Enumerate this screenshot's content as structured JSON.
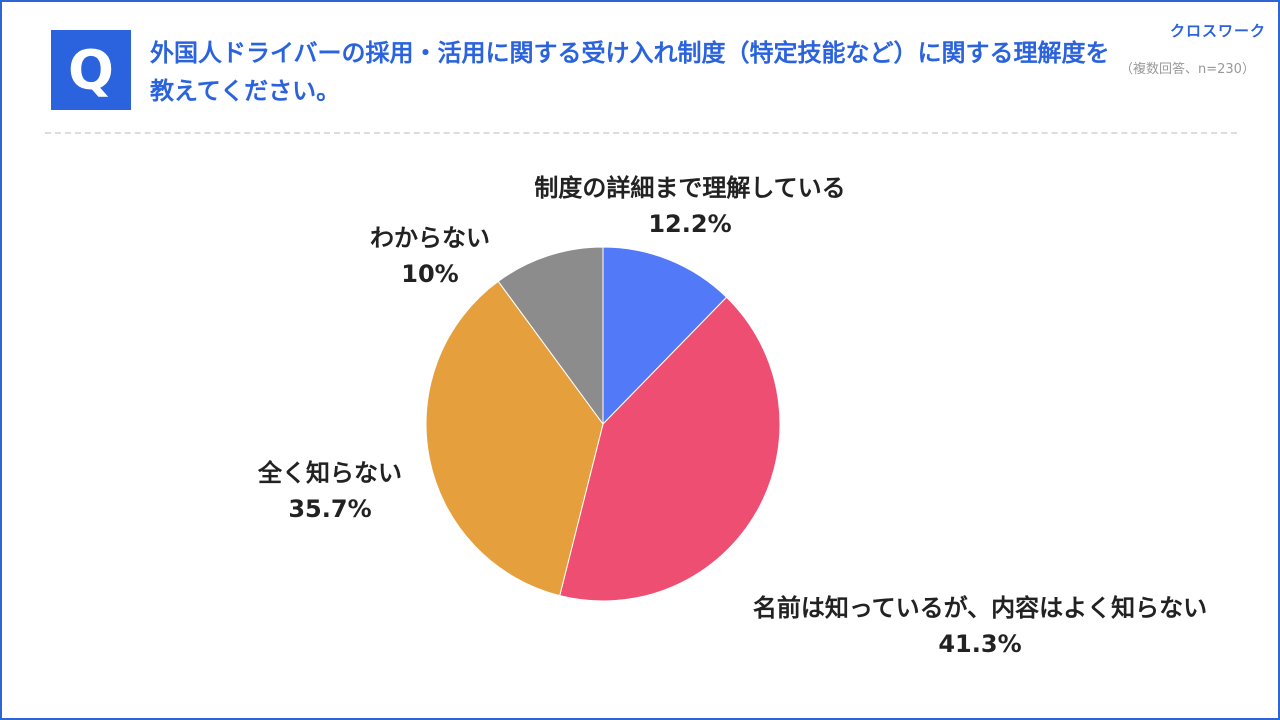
{
  "header": {
    "badge": "Q",
    "question": "外国人ドライバーの採用・活用に関する受け入れ制度（特定技能など）に関する理解度を教えてください。",
    "brand": "クロスワーク",
    "note": "（複数回答、n=230）"
  },
  "chart_data": {
    "type": "pie",
    "slices": [
      {
        "label": "制度の詳細まで理解している",
        "value": 12.2,
        "value_label": "12.2%",
        "color": "#5179f8"
      },
      {
        "label": "名前は知っているが、内容はよく知らない",
        "value": 41.3,
        "value_label": "41.3%",
        "color": "#ef4e73"
      },
      {
        "label": "全く知らない",
        "value": 35.7,
        "value_label": "35.7%",
        "color": "#e59f3c"
      },
      {
        "label": "わからない",
        "value": 10,
        "value_label": "10%",
        "color": "#8c8c8c"
      }
    ]
  }
}
